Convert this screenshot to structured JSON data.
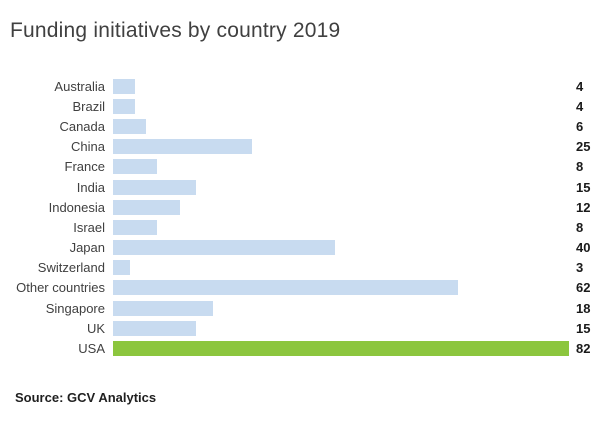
{
  "header": {
    "title": "Funding initiatives by country 2019"
  },
  "footer": {
    "source": "Source: GCV Analytics"
  },
  "chart_data": {
    "type": "bar",
    "orientation": "horizontal",
    "title": "Funding initiatives by country 2019",
    "categories": [
      "Australia",
      "Brazil",
      "Canada",
      "China",
      "France",
      "India",
      "Indonesia",
      "Israel",
      "Japan",
      "Switzerland",
      "Other countries",
      "Singapore",
      "UK",
      "USA"
    ],
    "values": [
      4,
      4,
      6,
      25,
      8,
      15,
      12,
      8,
      40,
      3,
      62,
      18,
      15,
      82
    ],
    "xlabel": "",
    "ylabel": "",
    "xlim": [
      0,
      82
    ],
    "grid": false,
    "legend": false,
    "value_labels": true,
    "bar_color": "#C8DBF0",
    "highlight_category": "USA",
    "highlight_color": "#8CC63E",
    "source": "Source: GCV Analytics"
  }
}
